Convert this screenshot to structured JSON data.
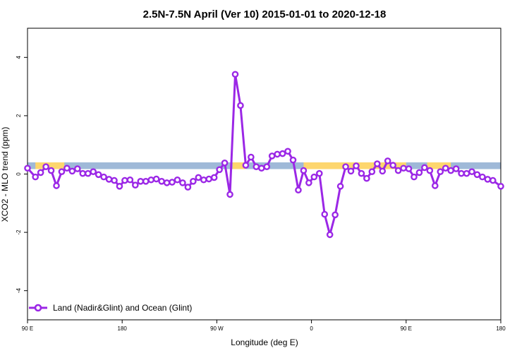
{
  "chart_data": {
    "type": "line",
    "title": "2.5N-7.5N April (Ver 10)   2015-01-01 to 2020-12-18",
    "xlabel": "Longitude (deg E)",
    "ylabel": "XCO2 - MLO trend (ppm)",
    "xlim": [
      90,
      450
    ],
    "ylim": [
      -5,
      5
    ],
    "x_ticks": [
      {
        "value": 90,
        "label": "90 E"
      },
      {
        "value": 162,
        "label": "180"
      },
      {
        "value": 234,
        "label": "90 W"
      },
      {
        "value": 306,
        "label": "0"
      },
      {
        "value": 378,
        "label": "90 E"
      },
      {
        "value": 450,
        "label": "180"
      }
    ],
    "y_ticks": [
      -4,
      -2,
      0,
      2,
      4
    ],
    "legend": {
      "position": "bottom-left",
      "label": "Land (Nadir&Glint) and Ocean (Glint)"
    },
    "colors": {
      "line": "#9b27e6",
      "ocean": "#9fb9d8",
      "land": "#fdd66e"
    },
    "land_ocean_band": {
      "y_range": [
        0.17,
        0.4
      ]
    },
    "series": [
      {
        "name": "Land (Nadir&Glint) and Ocean (Glint)",
        "x": [
          90,
          96,
          100,
          104,
          108,
          112,
          116,
          120,
          124,
          128,
          132,
          136,
          140,
          144,
          148,
          152,
          156,
          160,
          164,
          168,
          172,
          176,
          180,
          184,
          188,
          192,
          196,
          200,
          204,
          208,
          212,
          216,
          220,
          224,
          228,
          232,
          236,
          240,
          244,
          248,
          252,
          256,
          260,
          264,
          268,
          272,
          276,
          280,
          284,
          288,
          292,
          296,
          300,
          304,
          308,
          312,
          316,
          320,
          324,
          328,
          332,
          336,
          340,
          344,
          348,
          352,
          356,
          360,
          364,
          368,
          372,
          376,
          380,
          384,
          388,
          392,
          396,
          400,
          404,
          408,
          412,
          416,
          420,
          424,
          428,
          432,
          436,
          440,
          444,
          450
        ],
        "y": [
          0.2,
          -0.1,
          0.05,
          0.25,
          0.12,
          -0.4,
          0.08,
          0.2,
          0.1,
          0.18,
          0.02,
          0.02,
          0.08,
          -0.02,
          -0.1,
          -0.18,
          -0.22,
          -0.42,
          -0.22,
          -0.2,
          -0.38,
          -0.25,
          -0.25,
          -0.2,
          -0.17,
          -0.25,
          -0.3,
          -0.28,
          -0.2,
          -0.3,
          -0.45,
          -0.25,
          -0.12,
          -0.2,
          -0.17,
          -0.12,
          0.15,
          0.38,
          -0.7,
          3.42,
          2.35,
          0.3,
          0.58,
          0.25,
          0.2,
          0.25,
          0.62,
          0.68,
          0.7,
          0.78,
          0.48,
          -0.55,
          0.12,
          -0.3,
          -0.1,
          0.02,
          -1.38,
          -2.08,
          -1.4,
          -0.42,
          0.25,
          0.1,
          0.28,
          0.02,
          -0.15,
          0.08,
          0.35,
          0.1,
          0.45,
          0.3,
          0.12,
          0.2,
          0.18,
          -0.1,
          0.05,
          0.22,
          0.12,
          -0.4,
          0.08,
          0.2,
          0.12,
          0.18,
          0.02,
          0.02,
          0.08,
          -0.02,
          -0.1,
          -0.18,
          -0.22,
          -0.42
        ]
      }
    ]
  }
}
